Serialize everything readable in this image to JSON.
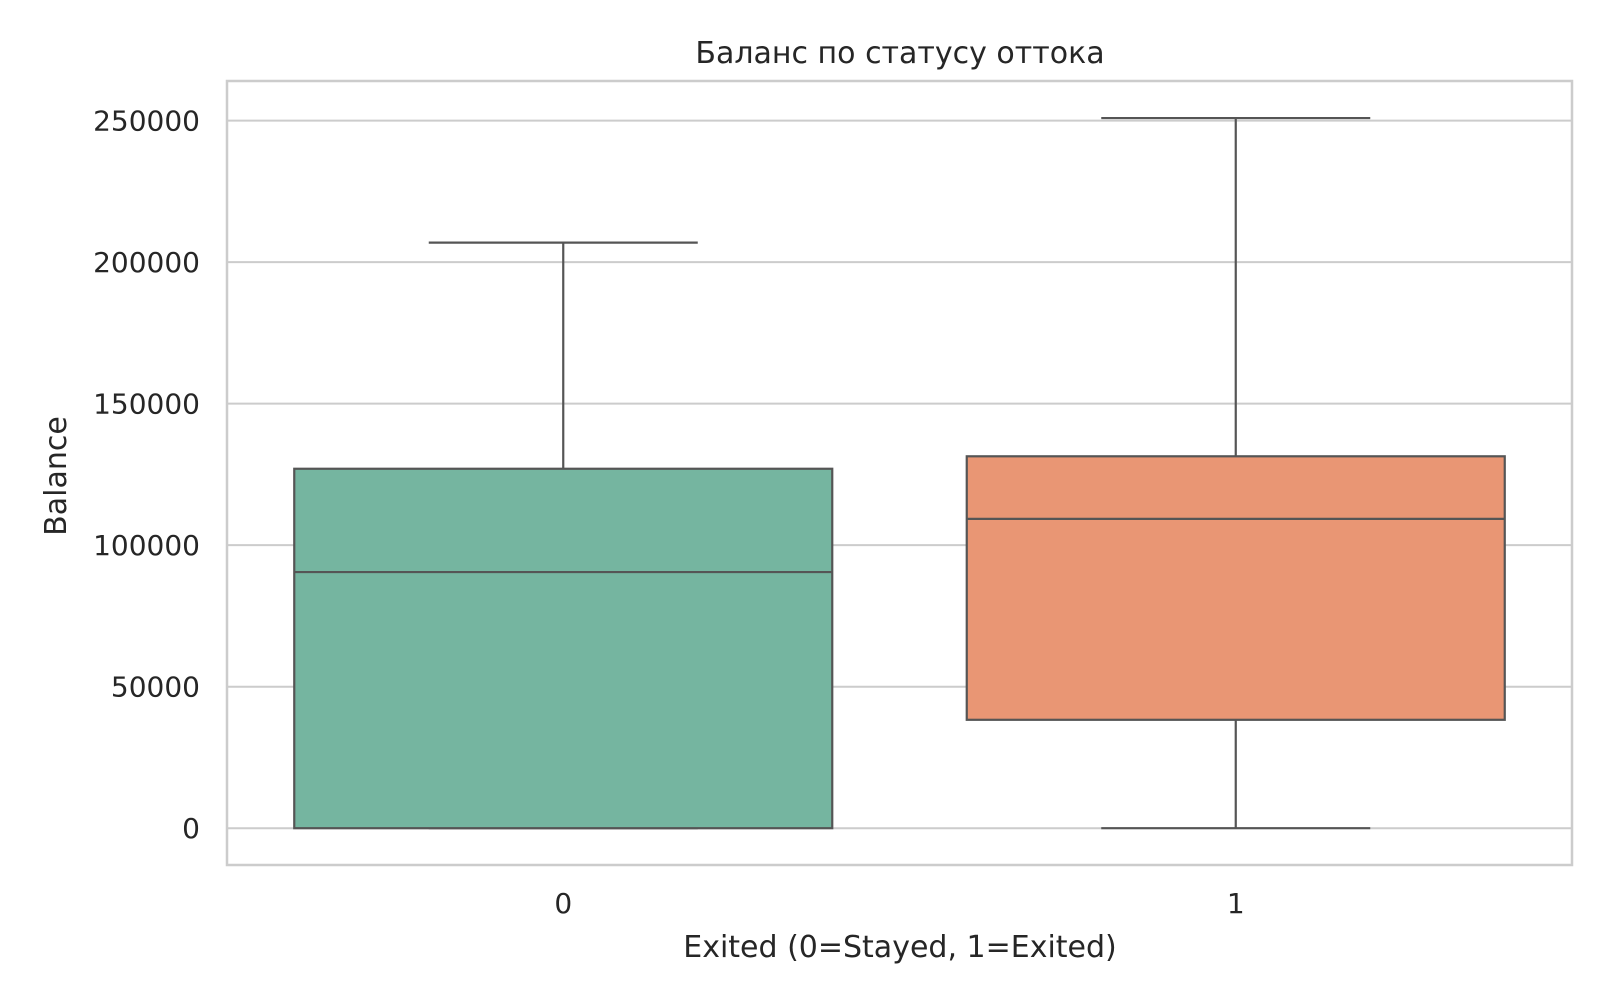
{
  "chart_data": {
    "type": "box",
    "title": "Баланс по статусу оттока",
    "xlabel": "Exited (0=Stayed, 1=Exited)",
    "ylabel": "Balance",
    "categories": [
      "0",
      "1"
    ],
    "ylim": [
      -13000,
      264000
    ],
    "yticks": [
      0,
      50000,
      100000,
      150000,
      200000,
      250000
    ],
    "grid": true,
    "boxes": [
      {
        "category": "0",
        "whisker_low": 0,
        "q1": 0,
        "median": 90500,
        "q3": 127000,
        "whisker_high": 206900,
        "color": "#75B5A0"
      },
      {
        "category": "1",
        "whisker_low": 0,
        "q1": 38300,
        "median": 109300,
        "q3": 131400,
        "whisker_high": 250900,
        "color": "#E99674"
      }
    ],
    "colors": {
      "line": "#555555",
      "grid": "#CCCCCC",
      "frame": "#CCCCCC"
    }
  }
}
